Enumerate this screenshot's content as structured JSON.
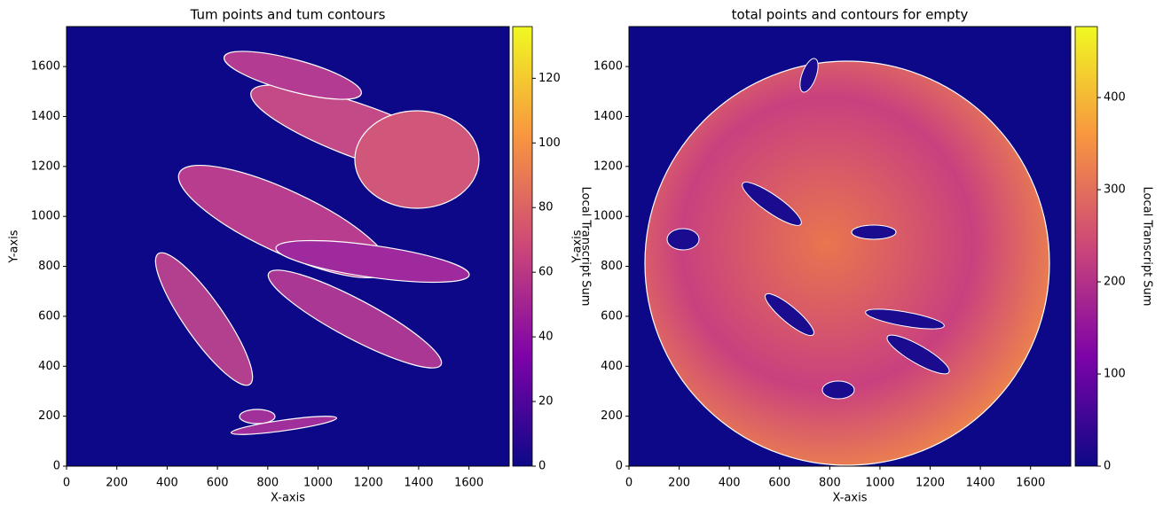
{
  "chart_data": [
    {
      "type": "heatmap",
      "title": "Tum points and tum contours",
      "xlabel": "X-axis",
      "ylabel": "Y-axis",
      "xlim": [
        0,
        1760
      ],
      "ylim": [
        0,
        1760
      ],
      "xticks": [
        0,
        200,
        400,
        600,
        800,
        1000,
        1200,
        1400,
        1600
      ],
      "yticks": [
        0,
        200,
        400,
        600,
        800,
        1000,
        1200,
        1400,
        1600
      ],
      "colorbar_label": "Local Transcript Sum",
      "clim": [
        0,
        136
      ],
      "cticks": [
        0,
        20,
        40,
        60,
        80,
        100,
        120
      ],
      "colormap": [
        "#0d0887",
        "#7e03a8",
        "#cc4778",
        "#f89540",
        "#f0f921"
      ]
    },
    {
      "type": "heatmap",
      "title": "total points and contours for empty",
      "xlabel": "X-axis",
      "ylabel": "Y-axis",
      "xlim": [
        0,
        1760
      ],
      "ylim": [
        0,
        1760
      ],
      "xticks": [
        0,
        200,
        400,
        600,
        800,
        1000,
        1200,
        1400,
        1600
      ],
      "yticks": [
        0,
        200,
        400,
        600,
        800,
        1000,
        1200,
        1400,
        1600
      ],
      "colorbar_label": "Local Transcript Sum",
      "clim": [
        0,
        477
      ],
      "cticks": [
        0,
        100,
        200,
        300,
        400
      ],
      "colormap": [
        "#0d0887",
        "#7e03a8",
        "#cc4778",
        "#f89540",
        "#f0f921"
      ]
    }
  ]
}
